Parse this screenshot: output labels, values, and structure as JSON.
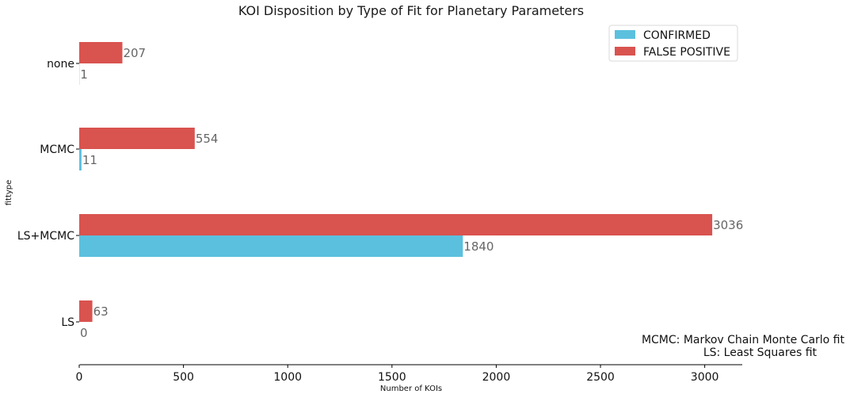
{
  "chart_data": {
    "type": "bar",
    "orientation": "horizontal",
    "title": "KOI Disposition by Type of Fit for Planetary Parameters",
    "xlabel": "Number of KOIs",
    "ylabel": "fittype",
    "categories": [
      "LS",
      "LS+MCMC",
      "MCMC",
      "none"
    ],
    "series": [
      {
        "name": "CONFIRMED",
        "color": "#5bc0de",
        "values": [
          0,
          1840,
          11,
          1
        ],
        "value_labels": [
          "0",
          "1840",
          "11",
          "1"
        ]
      },
      {
        "name": "FALSE POSITIVE",
        "color": "#d9534f",
        "values": [
          63,
          3036,
          554,
          207
        ],
        "value_labels": [
          "63",
          "3036",
          "554",
          "207"
        ]
      }
    ],
    "xlim": [
      0,
      3180
    ],
    "xticks": [
      0,
      500,
      1000,
      1500,
      2000,
      2500,
      3000
    ],
    "xtick_labels": [
      "0",
      "500",
      "1000",
      "1500",
      "2000",
      "2500",
      "3000"
    ],
    "grid": false,
    "legend_position": "top-right",
    "annotation": {
      "line1": "MCMC: Markov Chain Monte Carlo fit",
      "line2": "LS: Least Squares fit"
    }
  }
}
